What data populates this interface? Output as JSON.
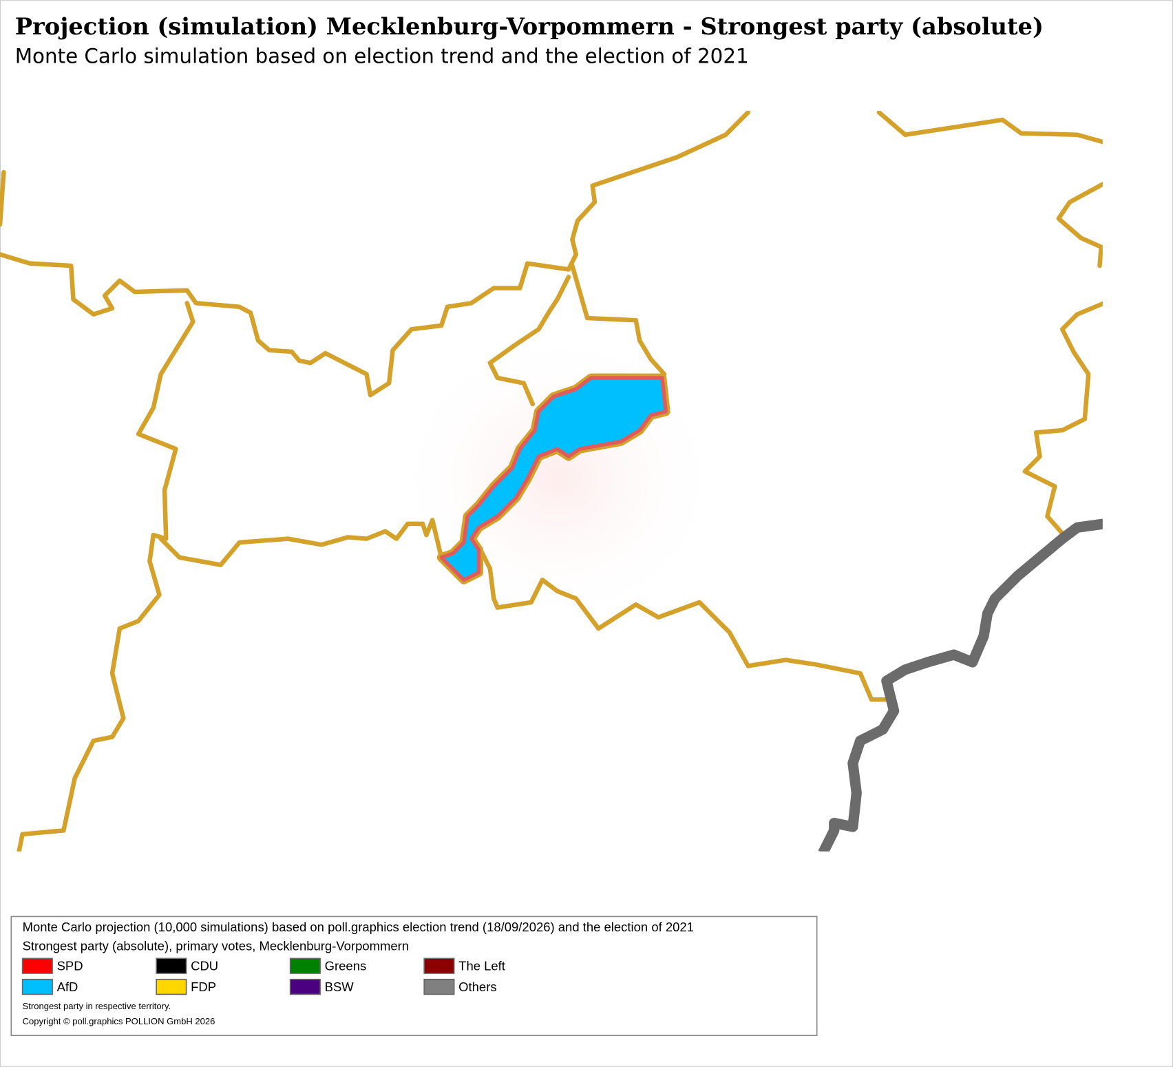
{
  "header": {
    "title": "Projection (simulation) Mecklenburg-Vorpommern - Strongest party (absolute)",
    "subtitle": "Monte Carlo simulation based on election trend and the election of 2021"
  },
  "legend": {
    "lines": [
      "Monte Carlo projection (10,000 simulations) based on poll.graphics election trend (18/09/2026) and the election of 2021",
      "Strongest party (absolute), primary votes, Mecklenburg-Vorpommern"
    ],
    "items": [
      {
        "label": "SPD",
        "color": "#ff0000"
      },
      {
        "label": "AfD",
        "color": "#00bfff"
      },
      {
        "label": "CDU",
        "color": "#000000"
      },
      {
        "label": "FDP",
        "color": "#ffd700"
      },
      {
        "label": "Greens",
        "color": "#008000"
      },
      {
        "label": "BSW",
        "color": "#4b0082"
      },
      {
        "label": "The Left",
        "color": "#8b0000"
      },
      {
        "label": "Others",
        "color": "#808080"
      }
    ],
    "notes": [
      "Strongest party in respective territory.",
      "Copyright © poll.graphics POLLION GmbH 2026"
    ]
  }
}
